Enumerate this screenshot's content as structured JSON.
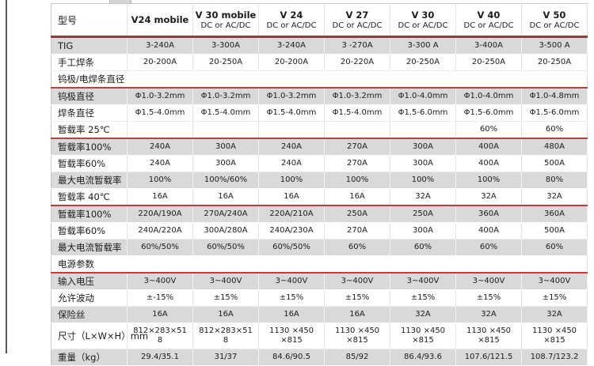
{
  "colors": {
    "header_underline": "#9c3a38",
    "section_line": "#c43c35",
    "shaded_row_bg": "#d9d9d9"
  },
  "table": {
    "header": {
      "model_label": "型号",
      "columns": [
        {
          "name": "V24 mobile",
          "sub": ""
        },
        {
          "name": "V 30 mobile",
          "sub": "DC or AC/DC"
        },
        {
          "name": "V 24",
          "sub": "DC or AC/DC"
        },
        {
          "name": "V 27",
          "sub": "DC or AC/DC"
        },
        {
          "name": "V 30",
          "sub": "DC or AC/DC"
        },
        {
          "name": "V 40",
          "sub": "DC or AC/DC"
        },
        {
          "name": "V 50",
          "sub": "DC or AC/DC"
        }
      ]
    },
    "rows": [
      {
        "label": "TIG",
        "shaded": true,
        "cells": [
          "3-240A",
          "3-300A",
          "3-240A",
          "3 -270A",
          "3-300 A",
          "3-400A",
          "3-500 A"
        ]
      },
      {
        "label": "手工焊条",
        "shaded": false,
        "cells": [
          "20-200A",
          "20-250A",
          "20-200A",
          "20-220A",
          "20-250A",
          "20-250A",
          "20-250A"
        ]
      },
      {
        "label": "钨极/电焊条直径",
        "section": true,
        "shaded": false,
        "red_line": true,
        "cells": [
          "",
          "",
          "",
          "",
          "",
          "",
          ""
        ]
      },
      {
        "label": "钨极直径",
        "shaded": true,
        "cells": [
          "Φ1.0-3.2mm",
          "Φ1.0-3.2mm",
          "Φ1.0-3.2mm",
          "Φ1.0-3.2mm",
          "Φ1.0-4.0mm",
          "Φ1.0-4.0mm",
          "Φ1.0-4.8mm"
        ]
      },
      {
        "label": "焊条直径",
        "shaded": false,
        "cells": [
          "Φ1.5-4.0mm",
          "Φ1.5-4.0mm",
          "Φ1.5-4.0mm",
          "Φ1.5-4.0mm",
          "Φ1.5-6.0mm",
          "Φ1.5-6.0mm",
          "Φ1.5-6.0mm"
        ]
      },
      {
        "label": "暂载率 25℃",
        "shaded": false,
        "red_line": true,
        "cells": [
          "",
          "",
          "",
          "",
          "",
          "60%",
          "60%"
        ]
      },
      {
        "label": "暂载率100%",
        "shaded": true,
        "cells": [
          "240A",
          "300A",
          "240A",
          "270A",
          "300A",
          "400A",
          "480A"
        ]
      },
      {
        "label": "暂载率60%",
        "shaded": false,
        "cells": [
          "240A",
          "300A",
          "240A",
          "270A",
          "300A",
          "400A",
          "500A"
        ]
      },
      {
        "label": "最大电流暂载率",
        "shaded": true,
        "cells": [
          "100%",
          "100%/60%",
          "100%",
          "100%",
          "100%",
          "100%",
          "80%"
        ]
      },
      {
        "label": "暂载率 40℃",
        "shaded": false,
        "red_line": true,
        "cells": [
          "16A",
          "16A",
          "16A",
          "16A",
          "32A",
          "32A",
          "32A"
        ]
      },
      {
        "label": "暂载率100%",
        "shaded": true,
        "cells": [
          "220A/190A",
          "270A/240A",
          "220A/210A",
          "250A",
          "250A",
          "360A",
          "360A"
        ]
      },
      {
        "label": "暂载率60%",
        "shaded": false,
        "cells": [
          "240A/220A",
          "300A/280A",
          "240A/230A",
          "270A",
          "300A",
          "400A",
          "500A"
        ]
      },
      {
        "label": "最大电流暂载率",
        "shaded": true,
        "cells": [
          "60%/50%",
          "60%/50%",
          "60%/50%",
          "60%",
          "60%",
          "60%",
          "60%"
        ]
      },
      {
        "label": "电源参数",
        "section": true,
        "shaded": false,
        "red_line": true,
        "cells": [
          "",
          "",
          "",
          "",
          "",
          "",
          ""
        ]
      },
      {
        "label": "输入电压",
        "shaded": true,
        "cells": [
          "3~400V",
          "3~400V",
          "3~400V",
          "3~400V",
          "3~400V",
          "3~400V",
          "3~400V"
        ]
      },
      {
        "label": "允许波动",
        "shaded": false,
        "cells": [
          "±-15%",
          "±15%",
          "±15%",
          "±15%",
          "±15%",
          "±15%",
          "±15%"
        ]
      },
      {
        "label": "保险丝",
        "shaded": true,
        "cells": [
          "16A",
          "16A",
          "16A",
          "16A",
          "32A",
          "32A",
          "32A"
        ]
      },
      {
        "label": "尺寸（L×W×H）mm",
        "shaded": false,
        "tall": true,
        "cells": [
          "812×283×51\n8",
          "812×283×51\n8",
          "1130 ×450 ×815",
          "1130 ×450 ×815",
          "1130 ×450 ×815",
          "1130 ×450 ×815",
          "1130 ×450 ×815"
        ]
      },
      {
        "label": "重量（kg）",
        "shaded": true,
        "cells": [
          "29.4/35.1",
          "31/37",
          "84.6/90.5",
          "85/92",
          "86.4/93.6",
          "107.6/121.5",
          "108.7/123.2"
        ]
      }
    ]
  }
}
